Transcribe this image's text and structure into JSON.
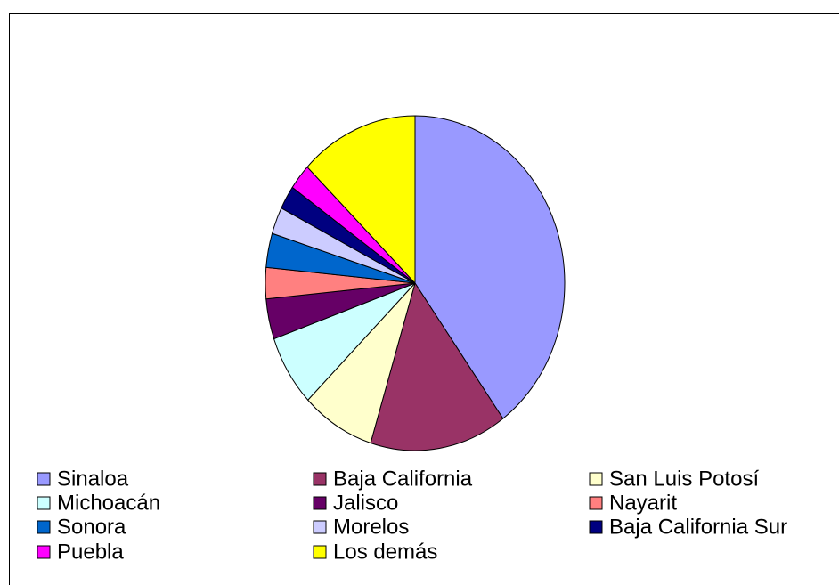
{
  "chart_data": {
    "type": "pie",
    "categories": [
      "Sinaloa",
      "Baja California",
      "San Luis Potosí",
      "Michoacán",
      "Jalisco",
      "Nayarit",
      "Sonora",
      "Morelos",
      "Baja California Sur",
      "Puebla",
      "Los demás"
    ],
    "values": [
      40,
      14.8,
      7.9,
      6.9,
      3.9,
      3,
      3.3,
      2.6,
      2.3,
      2.5,
      12.8
    ],
    "colors": [
      "#9999ff",
      "#993366",
      "#ffffcc",
      "#ccffff",
      "#660066",
      "#ff8080",
      "#0066cc",
      "#ccccff",
      "#000080",
      "#ff00ff",
      "#ffff00"
    ]
  }
}
